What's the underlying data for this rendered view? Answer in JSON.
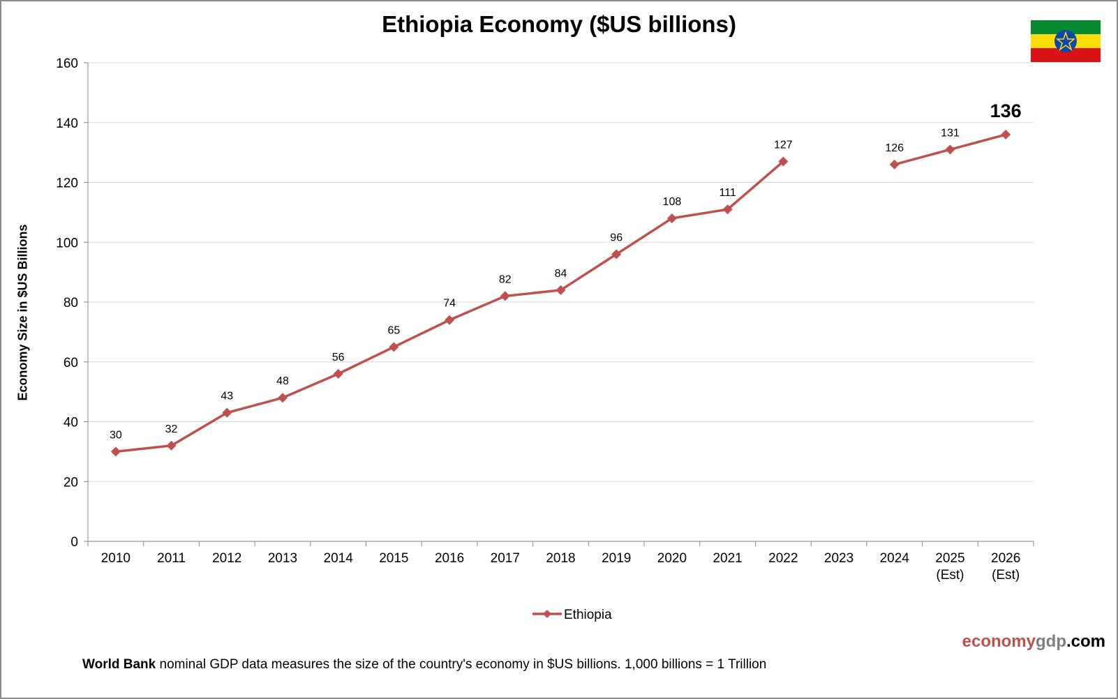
{
  "chart_data": {
    "type": "line",
    "title": "Ethiopia Economy ($US billions)",
    "ylabel": "Economy Size in $US Billions",
    "xlabel": "",
    "ylim": [
      0,
      160
    ],
    "yticks": [
      0,
      20,
      40,
      60,
      80,
      100,
      120,
      140,
      160
    ],
    "grid": true,
    "legend_placement": "bottom",
    "categories": [
      "2010",
      "2011",
      "2012",
      "2013",
      "2014",
      "2015",
      "2016",
      "2017",
      "2018",
      "2019",
      "2020",
      "2021",
      "2022",
      "2023",
      "2024",
      "2025\n(Est)",
      "2026\n(Est)"
    ],
    "series": [
      {
        "name": "Ethiopia",
        "color": "#c0504d",
        "values": [
          30,
          32,
          43,
          48,
          56,
          65,
          74,
          82,
          84,
          96,
          108,
          111,
          127,
          null,
          126,
          131,
          136
        ]
      }
    ],
    "highlight_label": "136"
  },
  "footer": {
    "bold": "World Bank",
    "text": " nominal GDP data  measures the size of the country's economy in $US billions.  1,000 billions = 1 Trillion"
  },
  "brand": {
    "part1": "economy",
    "part2": "gdp",
    "part3": ".com"
  },
  "flag": {
    "name": "ethiopia-flag",
    "colors": [
      "#078930",
      "#fcdd09",
      "#da121a",
      "#0f47af"
    ]
  }
}
